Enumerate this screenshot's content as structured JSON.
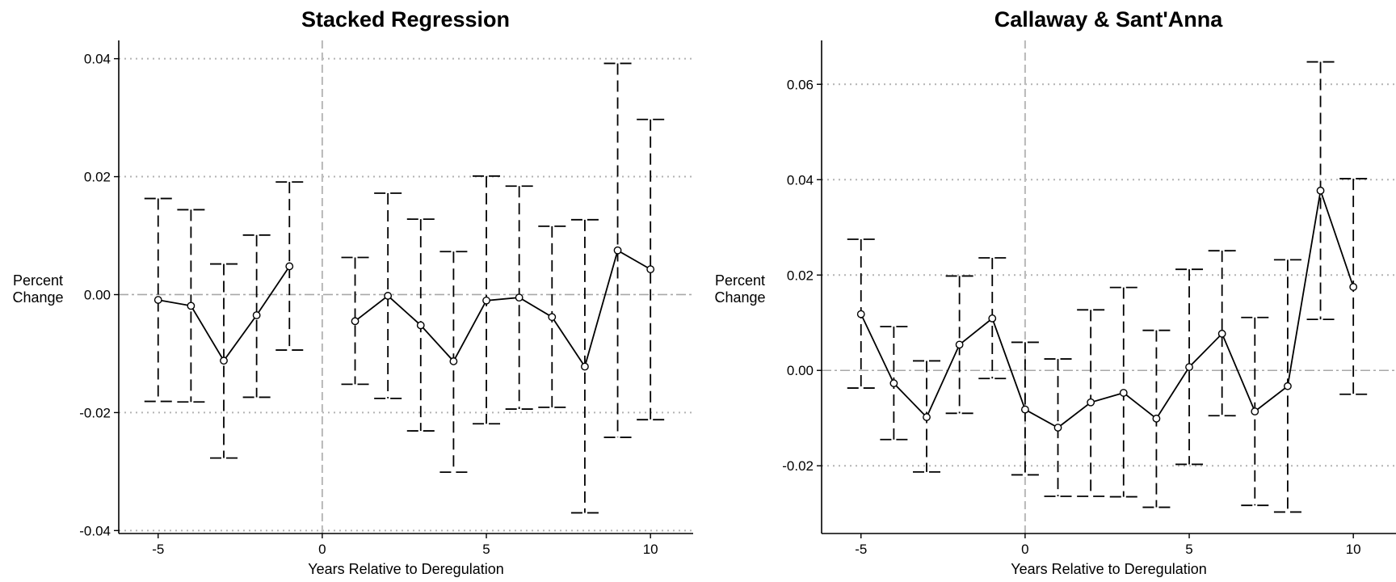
{
  "chart_data": [
    {
      "type": "line",
      "title": "Stacked Regression",
      "xlabel": "Years Relative to Deregulation",
      "ylabel": "Percent Change",
      "xlim": [
        -6.2,
        11.3
      ],
      "ylim": [
        -0.0405,
        0.0431
      ],
      "xticks": [
        -5,
        0,
        5,
        10
      ],
      "xtick_labels": [
        "-5",
        "0",
        "5",
        "10"
      ],
      "yticks": [
        0.04,
        0.02,
        0.0,
        -0.02,
        -0.04
      ],
      "ytick_labels": [
        "0.04",
        "0.02",
        "0.00",
        "-0.02",
        "-0.04"
      ],
      "grid": "horizontal dotted",
      "reference_lines": {
        "x": 0,
        "y": 0
      },
      "series": [
        {
          "segments": [
            {
              "x": [
                -5,
                -4,
                -3,
                -2,
                -1
              ],
              "y": [
                -0.0009,
                -0.0019,
                -0.0112,
                -0.0035,
                0.0048
              ],
              "ci_low": [
                -0.0181,
                -0.0182,
                -0.0277,
                -0.0174,
                -0.0094
              ],
              "ci_high": [
                0.0163,
                0.0144,
                0.0052,
                0.0101,
                0.0191
              ]
            },
            {
              "x": [
                1,
                2,
                3,
                4,
                5,
                6,
                7,
                8,
                9,
                10
              ],
              "y": [
                -0.0045,
                -0.0002,
                -0.0052,
                -0.0113,
                -0.001,
                -0.0005,
                -0.0038,
                -0.0122,
                0.0075,
                0.0043
              ],
              "ci_low": [
                -0.0152,
                -0.0176,
                -0.0231,
                -0.0301,
                -0.0219,
                -0.0194,
                -0.0191,
                -0.037,
                -0.0242,
                -0.0212
              ],
              "ci_high": [
                0.0063,
                0.0172,
                0.0128,
                0.0073,
                0.0201,
                0.0184,
                0.0116,
                0.0127,
                0.0392,
                0.0297
              ]
            }
          ]
        }
      ]
    },
    {
      "type": "line",
      "title": "Callaway & Sant'Anna",
      "xlabel": "Years Relative to Deregulation",
      "ylabel": "Percent Change",
      "xlim": [
        -6.2,
        11.3
      ],
      "ylim": [
        -0.0342,
        0.0692
      ],
      "xticks": [
        -5,
        0,
        5,
        10
      ],
      "xtick_labels": [
        "-5",
        "0",
        "5",
        "10"
      ],
      "yticks": [
        0.06,
        0.04,
        0.02,
        0.0,
        -0.02
      ],
      "ytick_labels": [
        "0.06",
        "0.04",
        "0.02",
        "0.00",
        "-0.02"
      ],
      "grid": "horizontal dotted",
      "reference_lines": {
        "x": 0,
        "y": 0
      },
      "series": [
        {
          "segments": [
            {
              "x": [
                -5,
                -4,
                -3,
                -2,
                -1,
                0,
                1,
                2,
                3,
                4,
                5,
                6,
                7,
                8,
                9,
                10
              ],
              "y": [
                0.0118,
                -0.0027,
                -0.0098,
                0.0054,
                0.0109,
                -0.0082,
                -0.012,
                -0.0067,
                -0.0047,
                -0.0101,
                0.0007,
                0.0077,
                -0.0086,
                -0.0033,
                0.0377,
                0.0175
              ],
              "ci_low": [
                -0.0037,
                -0.0145,
                -0.0213,
                -0.009,
                -0.0017,
                -0.0219,
                -0.0264,
                -0.0264,
                -0.0265,
                -0.0287,
                -0.0197,
                -0.0095,
                -0.0283,
                -0.0297,
                0.0107,
                -0.005
              ],
              "ci_high": [
                0.0275,
                0.0092,
                0.002,
                0.0198,
                0.0236,
                0.0059,
                0.0024,
                0.0127,
                0.0174,
                0.0084,
                0.0212,
                0.0251,
                0.0111,
                0.0232,
                0.0647,
                0.0402
              ]
            }
          ]
        }
      ]
    }
  ]
}
